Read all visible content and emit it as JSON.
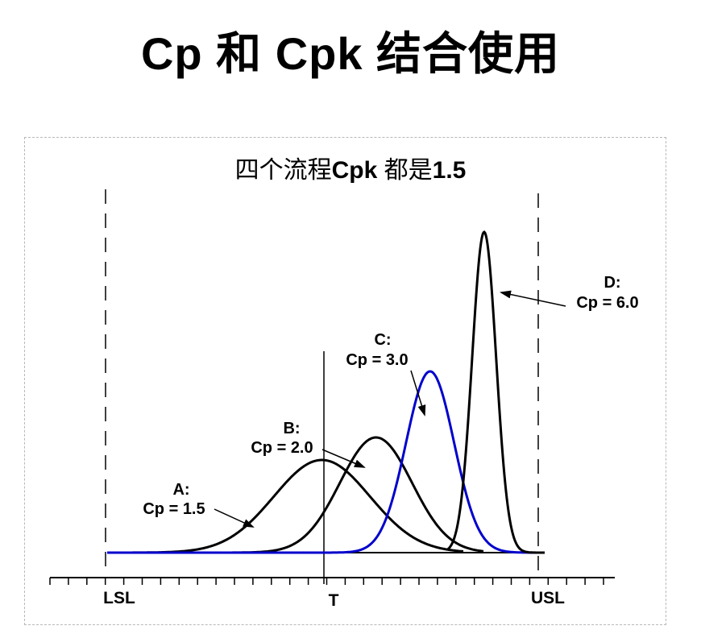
{
  "title": "Cp 和 Cpk 结合使用",
  "diagram": {
    "title_prefix": "四个流程",
    "title_bold": "Cpk",
    "title_middle": " 都是",
    "title_value": "1.5",
    "axis_labels": {
      "lsl": "LSL",
      "target": "T",
      "usl": "USL"
    },
    "curves": [
      {
        "id": "A",
        "name": "A:",
        "cp_text": "Cp = 1.5",
        "cp": 1.5,
        "color": "#000000"
      },
      {
        "id": "B",
        "name": "B:",
        "cp_text": "Cp = 2.0",
        "cp": 2.0,
        "color": "#000000"
      },
      {
        "id": "C",
        "name": "C:",
        "cp_text": "Cp = 3.0",
        "cp": 3.0,
        "color": "#0000cc"
      },
      {
        "id": "D",
        "name": "D:",
        "cp_text": "Cp = 6.0",
        "cp": 6.0,
        "color": "#000000"
      }
    ]
  }
}
